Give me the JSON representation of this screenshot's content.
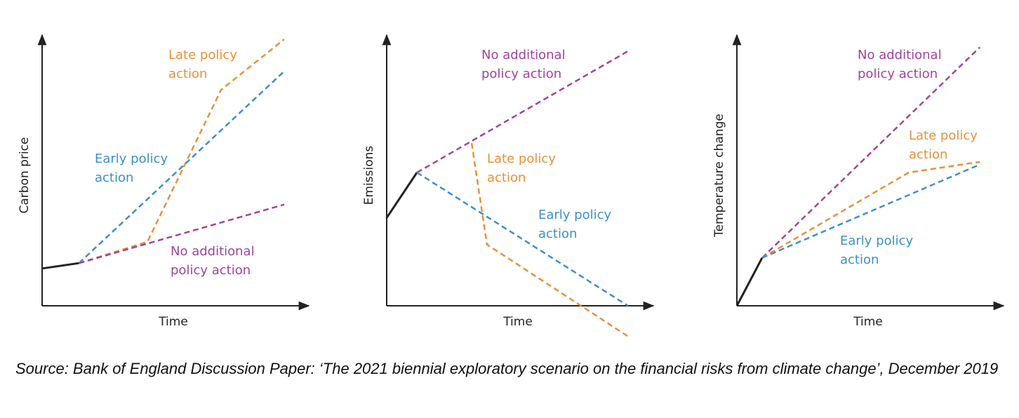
{
  "charts": [
    {
      "chart_data": {
        "type": "line",
        "ylabel": "Carbon price",
        "xlabel": "Time",
        "xlim": [
          0,
          100
        ],
        "ylim": [
          -15,
          100
        ],
        "series": [
          {
            "color": "#222222",
            "x": [
              0,
              14
            ],
            "values": [
              14,
              16
            ]
          },
          {
            "name": "Late policy action",
            "color": "#e8913a",
            "x": [
              14,
              40,
              68,
              92
            ],
            "values": [
              16,
              24,
              81,
              100
            ]
          },
          {
            "name": "Early policy action",
            "color": "#3e8fc9",
            "x": [
              14,
              92
            ],
            "values": [
              16,
              88
            ]
          },
          {
            "name": "No additional policy action",
            "color": "#a0449c",
            "x": [
              14,
              92
            ],
            "values": [
              16,
              38
            ]
          }
        ]
      }
    },
    {
      "chart_data": {
        "type": "line",
        "ylabel": "Emissions",
        "xlabel": "Time",
        "xlim": [
          0,
          100
        ],
        "ylim": [
          -15,
          100
        ],
        "series": [
          {
            "color": "#222222",
            "x": [
              0,
              11.5
            ],
            "values": [
              33,
              50
            ]
          },
          {
            "name": "No additional policy action",
            "color": "#a0449c",
            "x": [
              11.5,
              92.5
            ],
            "values": [
              50,
              96
            ]
          },
          {
            "name": "Late policy action",
            "color": "#e8913a",
            "x": [
              32.3,
              38.1,
              92.5
            ],
            "values": [
              61,
              23,
              -12
            ]
          },
          {
            "name": "Early policy action",
            "color": "#3e8fc9",
            "x": [
              11.5,
              91.7
            ],
            "values": [
              50,
              0
            ]
          }
        ]
      }
    },
    {
      "chart_data": {
        "type": "line",
        "ylabel": "Temperature change",
        "xlabel": "Time",
        "xlim": [
          0,
          100
        ],
        "ylim": [
          -15,
          100
        ],
        "series": [
          {
            "color": "#222222",
            "x": [
              0,
              9.6
            ],
            "values": [
              0,
              18
            ]
          },
          {
            "name": "No additional policy action",
            "color": "#a0449c",
            "x": [
              9.6,
              92.3
            ],
            "values": [
              18,
              97
            ]
          },
          {
            "name": "Late policy action",
            "color": "#e8913a",
            "x": [
              9.6,
              65.3,
              92.3
            ],
            "values": [
              18,
              50,
              54
            ]
          },
          {
            "name": "Early policy action",
            "color": "#3e8fc9",
            "x": [
              9.6,
              92.3
            ],
            "values": [
              18,
              53
            ]
          }
        ]
      }
    }
  ],
  "source": "Source: Bank of England Discussion Paper: ‘The 2021 biennial exploratory scenario on the financial risks from climate change’, December 2019"
}
